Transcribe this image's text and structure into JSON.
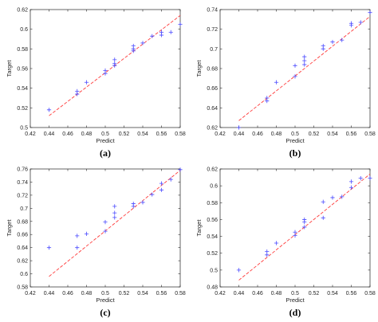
{
  "chart_data": [
    {
      "type": "scatter",
      "caption": "(a)",
      "xlabel": "Predict",
      "ylabel": "Target",
      "xlim": [
        0.42,
        0.58
      ],
      "ylim": [
        0.5,
        0.62
      ],
      "xticks": [
        "0.42",
        "0.44",
        "0.46",
        "0.48",
        "0.5",
        "0.52",
        "0.54",
        "0.56",
        "0.58"
      ],
      "yticks": [
        "0.5",
        "0.52",
        "0.54",
        "0.56",
        "0.58",
        "0.6",
        "0.62"
      ],
      "fit_line": [
        [
          0.44,
          0.512
        ],
        [
          0.58,
          0.614
        ]
      ],
      "points": [
        [
          0.44,
          0.518
        ],
        [
          0.47,
          0.534
        ],
        [
          0.47,
          0.537
        ],
        [
          0.48,
          0.546
        ],
        [
          0.5,
          0.555
        ],
        [
          0.5,
          0.558
        ],
        [
          0.51,
          0.563
        ],
        [
          0.51,
          0.565
        ],
        [
          0.51,
          0.569
        ],
        [
          0.53,
          0.578
        ],
        [
          0.53,
          0.58
        ],
        [
          0.53,
          0.583
        ],
        [
          0.54,
          0.586
        ],
        [
          0.55,
          0.593
        ],
        [
          0.56,
          0.594
        ],
        [
          0.56,
          0.597
        ],
        [
          0.57,
          0.597
        ],
        [
          0.58,
          0.605
        ]
      ]
    },
    {
      "type": "scatter",
      "caption": "(b)",
      "xlabel": "Predict",
      "ylabel": "Target",
      "xlim": [
        0.42,
        0.58
      ],
      "ylim": [
        0.62,
        0.74
      ],
      "xticks": [
        "0.42",
        "0.44",
        "0.46",
        "0.48",
        "0.5",
        "0.52",
        "0.54",
        "0.56",
        "0.58"
      ],
      "yticks": [
        "0.62",
        "0.64",
        "0.66",
        "0.68",
        "0.7",
        "0.72",
        "0.74"
      ],
      "fit_line": [
        [
          0.44,
          0.627
        ],
        [
          0.58,
          0.733
        ]
      ],
      "points": [
        [
          0.44,
          0.62
        ],
        [
          0.47,
          0.647
        ],
        [
          0.47,
          0.65
        ],
        [
          0.48,
          0.666
        ],
        [
          0.5,
          0.672
        ],
        [
          0.5,
          0.683
        ],
        [
          0.51,
          0.684
        ],
        [
          0.51,
          0.688
        ],
        [
          0.51,
          0.692
        ],
        [
          0.53,
          0.7
        ],
        [
          0.53,
          0.703
        ],
        [
          0.54,
          0.707
        ],
        [
          0.55,
          0.709
        ],
        [
          0.56,
          0.724
        ],
        [
          0.56,
          0.726
        ],
        [
          0.57,
          0.727
        ],
        [
          0.58,
          0.737
        ]
      ]
    },
    {
      "type": "scatter",
      "caption": "(c)",
      "xlabel": "Predict",
      "ylabel": "Target",
      "xlim": [
        0.42,
        0.58
      ],
      "ylim": [
        0.58,
        0.76
      ],
      "xticks": [
        "0.42",
        "0.44",
        "0.46",
        "0.48",
        "0.5",
        "0.52",
        "0.54",
        "0.56",
        "0.58"
      ],
      "yticks": [
        "0.58",
        "0.6",
        "0.62",
        "0.64",
        "0.66",
        "0.68",
        "0.7",
        "0.72",
        "0.74",
        "0.76"
      ],
      "fit_line": [
        [
          0.44,
          0.596
        ],
        [
          0.58,
          0.758
        ]
      ],
      "points": [
        [
          0.44,
          0.64
        ],
        [
          0.47,
          0.64
        ],
        [
          0.47,
          0.658
        ],
        [
          0.48,
          0.661
        ],
        [
          0.5,
          0.665
        ],
        [
          0.5,
          0.679
        ],
        [
          0.51,
          0.686
        ],
        [
          0.51,
          0.693
        ],
        [
          0.51,
          0.703
        ],
        [
          0.53,
          0.703
        ],
        [
          0.53,
          0.707
        ],
        [
          0.54,
          0.709
        ],
        [
          0.55,
          0.721
        ],
        [
          0.56,
          0.728
        ],
        [
          0.56,
          0.738
        ],
        [
          0.57,
          0.744
        ],
        [
          0.58,
          0.759
        ]
      ]
    },
    {
      "type": "scatter",
      "caption": "(d)",
      "xlabel": "Predict",
      "ylabel": "Target",
      "xlim": [
        0.42,
        0.58
      ],
      "ylim": [
        0.48,
        0.62
      ],
      "xticks": [
        "0.42",
        "0.44",
        "0.46",
        "0.48",
        "0.5",
        "0.52",
        "0.54",
        "0.56",
        "0.58"
      ],
      "yticks": [
        "0.48",
        "0.5",
        "0.52",
        "0.54",
        "0.56",
        "0.58",
        "0.6",
        "0.62"
      ],
      "fit_line": [
        [
          0.44,
          0.488
        ],
        [
          0.58,
          0.614
        ]
      ],
      "points": [
        [
          0.44,
          0.5
        ],
        [
          0.47,
          0.518
        ],
        [
          0.47,
          0.522
        ],
        [
          0.48,
          0.532
        ],
        [
          0.5,
          0.541
        ],
        [
          0.5,
          0.545
        ],
        [
          0.51,
          0.551
        ],
        [
          0.51,
          0.557
        ],
        [
          0.51,
          0.56
        ],
        [
          0.53,
          0.562
        ],
        [
          0.53,
          0.581
        ],
        [
          0.54,
          0.586
        ],
        [
          0.55,
          0.587
        ],
        [
          0.56,
          0.598
        ],
        [
          0.56,
          0.605
        ],
        [
          0.57,
          0.609
        ],
        [
          0.58,
          0.609
        ]
      ]
    }
  ],
  "colors": {
    "points": "#4a4aff",
    "fit_line": "#ff3b3b",
    "axes": "#262626"
  }
}
